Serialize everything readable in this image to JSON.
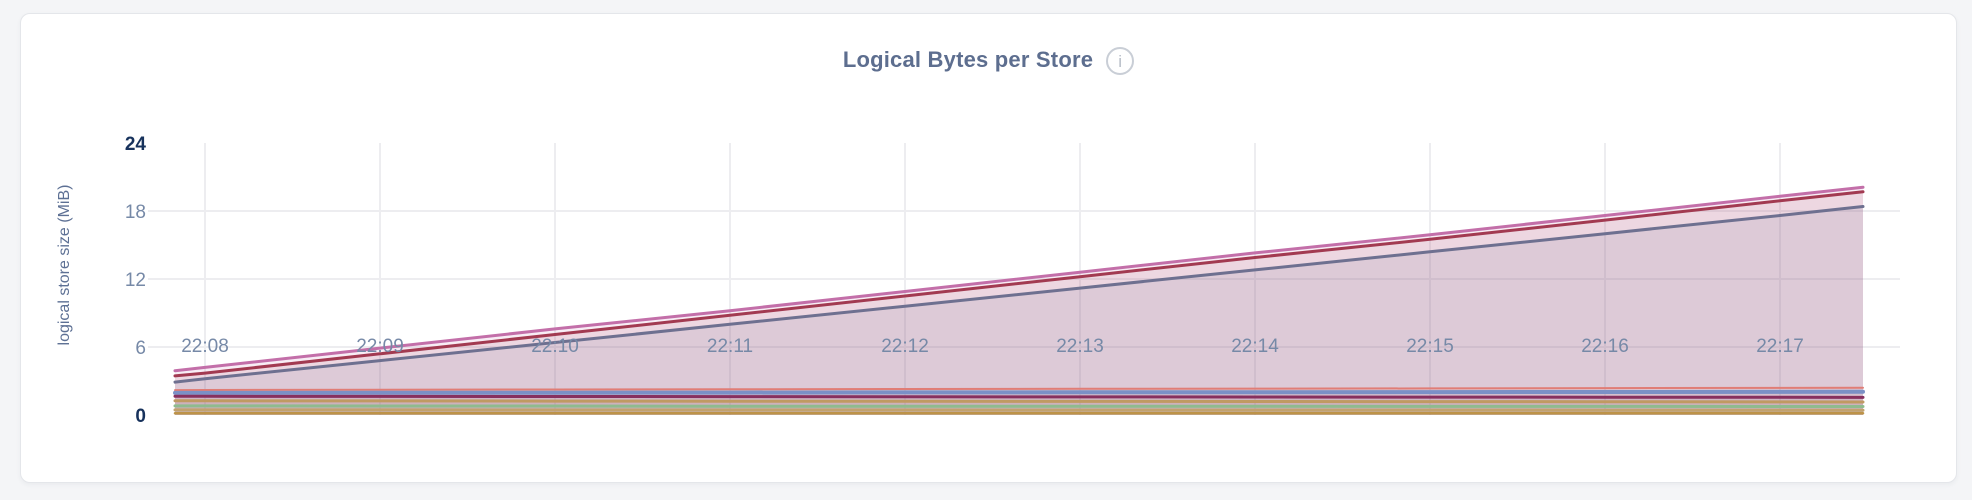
{
  "page": {
    "background_color": "#f4f5f7",
    "card_color": "#ffffff"
  },
  "header": {
    "title": "Logical Bytes per Store",
    "info_icon_glyph": "i"
  },
  "chart_data": {
    "type": "area",
    "title": "Logical Bytes per Store",
    "xlabel": "",
    "ylabel": "logical store size (MiB)",
    "ylim": [
      0,
      24
    ],
    "y_ticks": [
      24,
      18,
      12,
      6,
      0
    ],
    "y_ticks_emphasized": [
      24,
      0
    ],
    "y_gridlines": [
      18,
      12,
      6
    ],
    "grid": true,
    "grid_color": "#ededf0",
    "legend": "none",
    "x_ticks": [
      "22:08",
      "22:09",
      "22:10",
      "22:11",
      "22:12",
      "22:13",
      "22:14",
      "22:15",
      "22:16",
      "22:17"
    ],
    "x": [
      "22:07:50",
      "22:08",
      "22:09",
      "22:10",
      "22:11",
      "22:12",
      "22:13",
      "22:14",
      "22:15",
      "22:16",
      "22:17",
      "22:17:20"
    ],
    "series": [
      {
        "id": "series-1",
        "color": "#c36fa9",
        "line_width": 3,
        "fill_opacity": 0.12,
        "values": [
          3.9,
          4.2,
          5.9,
          7.6,
          9.2,
          10.9,
          12.6,
          14.3,
          15.9,
          17.6,
          19.3,
          20.1
        ]
      },
      {
        "id": "series-2",
        "color": "#a23a51",
        "line_width": 3,
        "fill_opacity": 0.12,
        "values": [
          3.45,
          3.7,
          5.4,
          7.1,
          8.8,
          10.5,
          12.2,
          13.9,
          15.5,
          17.2,
          18.9,
          19.7
        ]
      },
      {
        "id": "series-3",
        "color": "#6e7090",
        "line_width": 3,
        "fill_opacity": 0.12,
        "values": [
          2.9,
          3.2,
          4.8,
          6.4,
          8.0,
          9.6,
          11.2,
          12.8,
          14.4,
          16.0,
          17.6,
          18.4
        ]
      },
      {
        "id": "series-4",
        "color": "#e07d76",
        "line_width": 2,
        "fill_opacity": 0.08,
        "values": [
          2.2,
          2.21,
          2.23,
          2.25,
          2.27,
          2.29,
          2.31,
          2.33,
          2.35,
          2.37,
          2.39,
          2.4
        ]
      },
      {
        "id": "series-5",
        "color": "#7b90c6",
        "line_width": 4,
        "fill_opacity": 0.08,
        "values": [
          1.95,
          1.95,
          1.96,
          1.97,
          1.98,
          1.99,
          2.0,
          2.01,
          2.02,
          2.03,
          2.04,
          2.05
        ]
      },
      {
        "id": "series-6",
        "color": "#87305f",
        "line_width": 3,
        "fill_opacity": 0.08,
        "values": [
          1.65,
          1.65,
          1.64,
          1.63,
          1.62,
          1.61,
          1.6,
          1.59,
          1.58,
          1.57,
          1.56,
          1.55
        ]
      },
      {
        "id": "series-7",
        "color": "#c09a62",
        "line_width": 3,
        "fill_opacity": 0.08,
        "values": [
          1.25,
          1.25,
          1.24,
          1.23,
          1.22,
          1.21,
          1.2,
          1.19,
          1.18,
          1.17,
          1.16,
          1.15
        ]
      },
      {
        "id": "series-8",
        "color": "#8fbb8e",
        "line_width": 3,
        "fill_opacity": 0.08,
        "values": [
          0.8,
          0.8,
          0.79,
          0.79,
          0.78,
          0.78,
          0.77,
          0.77,
          0.76,
          0.76,
          0.75,
          0.75
        ]
      },
      {
        "id": "series-9",
        "color": "#c2a26e",
        "line_width": 3,
        "fill_opacity": 0.08,
        "values": [
          0.45,
          0.45,
          0.45,
          0.44,
          0.44,
          0.44,
          0.43,
          0.43,
          0.43,
          0.42,
          0.42,
          0.42
        ]
      },
      {
        "id": "series-10",
        "color": "#bd9348",
        "line_width": 2.5,
        "fill_opacity": 0.08,
        "values": [
          0.15,
          0.15,
          0.15,
          0.15,
          0.15,
          0.15,
          0.15,
          0.15,
          0.15,
          0.15,
          0.15,
          0.15
        ]
      }
    ]
  }
}
